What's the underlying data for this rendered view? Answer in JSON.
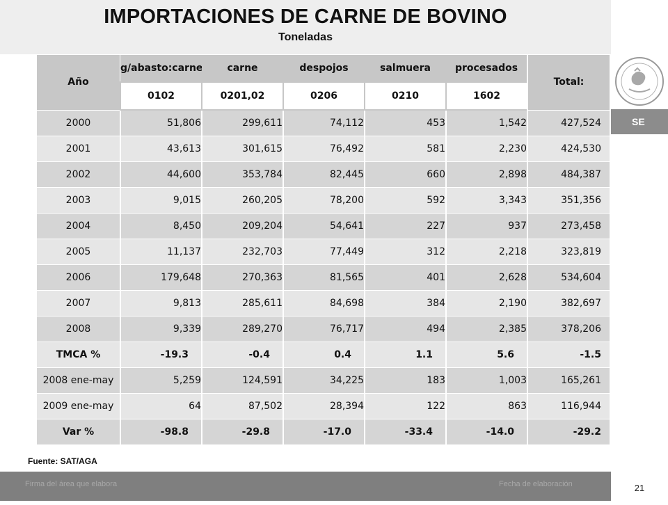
{
  "header": {
    "title": "IMPORTACIONES DE CARNE DE BOVINO",
    "subtitle": "Toneladas"
  },
  "sidebar": {
    "se_label": "SE",
    "emblem_icon": "mexico-coat-of-arms-icon"
  },
  "table": {
    "year_header": "Año",
    "total_header": "Total:",
    "columns": [
      {
        "name": "g/abasto:carne",
        "code": "0102"
      },
      {
        "name": "carne",
        "code": "0201,02"
      },
      {
        "name": "despojos",
        "code": "0206"
      },
      {
        "name": "salmuera",
        "code": "0210"
      },
      {
        "name": "procesados",
        "code": "1602"
      }
    ],
    "rows": [
      {
        "year": "2000",
        "v": [
          "51,806",
          "299,611",
          "74,112",
          "453",
          "1,542"
        ],
        "total": "427,524"
      },
      {
        "year": "2001",
        "v": [
          "43,613",
          "301,615",
          "76,492",
          "581",
          "2,230"
        ],
        "total": "424,530"
      },
      {
        "year": "2002",
        "v": [
          "44,600",
          "353,784",
          "82,445",
          "660",
          "2,898"
        ],
        "total": "484,387"
      },
      {
        "year": "2003",
        "v": [
          "9,015",
          "260,205",
          "78,200",
          "592",
          "3,343"
        ],
        "total": "351,356"
      },
      {
        "year": "2004",
        "v": [
          "8,450",
          "209,204",
          "54,641",
          "227",
          "937"
        ],
        "total": "273,458"
      },
      {
        "year": "2005",
        "v": [
          "11,137",
          "232,703",
          "77,449",
          "312",
          "2,218"
        ],
        "total": "323,819"
      },
      {
        "year": "2006",
        "v": [
          "179,648",
          "270,363",
          "81,565",
          "401",
          "2,628"
        ],
        "total": "534,604"
      },
      {
        "year": "2007",
        "v": [
          "9,813",
          "285,611",
          "84,698",
          "384",
          "2,190"
        ],
        "total": "382,697"
      },
      {
        "year": "2008",
        "v": [
          "9,339",
          "289,270",
          "76,717",
          "494",
          "2,385"
        ],
        "total": "378,206"
      },
      {
        "year": "TMCA  %",
        "v": [
          "-19.3",
          "-0.4",
          "0.4",
          "1.1",
          "5.6"
        ],
        "total": "-1.5",
        "bold": true
      },
      {
        "year": "2008 ene-may",
        "v": [
          "5,259",
          "124,591",
          "34,225",
          "183",
          "1,003"
        ],
        "total": "165,261"
      },
      {
        "year": "2009 ene-may",
        "v": [
          "64",
          "87,502",
          "28,394",
          "122",
          "863"
        ],
        "total": "116,944"
      },
      {
        "year": "Var %",
        "v": [
          "-98.8",
          "-29.8",
          "-17.0",
          "-33.4",
          "-14.0"
        ],
        "total": "-29.2",
        "bold": true
      }
    ]
  },
  "source": "Fuente:  SAT/AGA",
  "footer": {
    "left": "Firma del área que elabora",
    "right": "Fecha de elaboración",
    "page": "21"
  }
}
